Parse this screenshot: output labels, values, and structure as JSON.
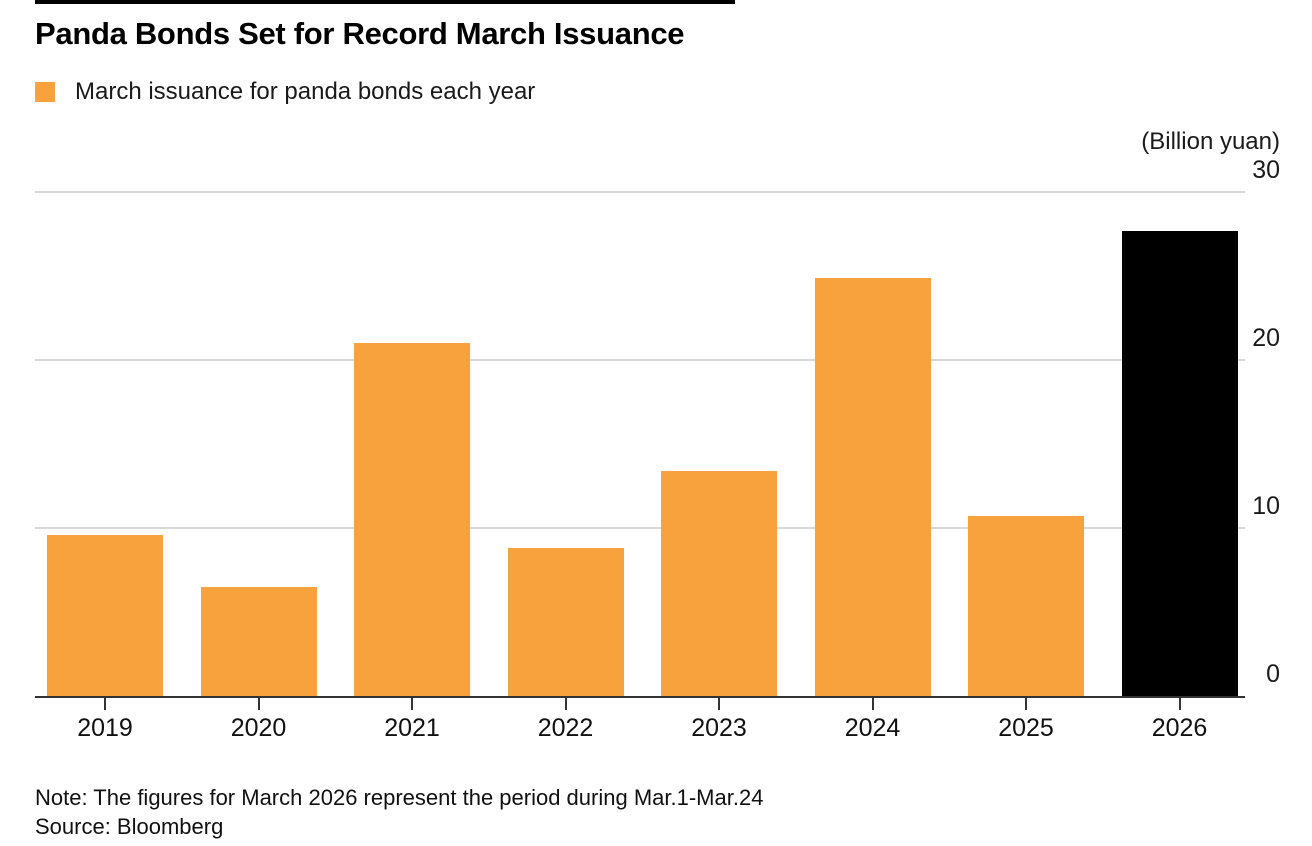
{
  "page": {
    "title": "Panda Bonds Set for Record March Issuance",
    "note": "Note: The figures for March 2026 represent the period during Mar.1-Mar.24",
    "source": "Source: Bloomberg"
  },
  "legend": {
    "label": "March issuance for panda bonds each year"
  },
  "colors": {
    "bar_orange": "#F7A23C",
    "bar_highlight": "#000000",
    "gridline": "#D9D9D9",
    "axis": "#333333",
    "text": "#111111"
  },
  "chart_data": {
    "type": "bar",
    "title": "Panda Bonds Set for Record March Issuance",
    "legend_entries": [
      "March issuance for panda bonds each year"
    ],
    "legend_position": "top-left",
    "unit_label": "(Billion yuan)",
    "categories": [
      "2019",
      "2020",
      "2021",
      "2022",
      "2023",
      "2024",
      "2025",
      "2026"
    ],
    "values": [
      9.6,
      6.5,
      21.0,
      8.8,
      13.4,
      24.9,
      10.7,
      27.7
    ],
    "bar_colors": [
      "orange",
      "orange",
      "orange",
      "orange",
      "orange",
      "orange",
      "orange",
      "highlight"
    ],
    "highlighted_category": "2026",
    "xlabel": "",
    "ylabel": "(Billion yuan)",
    "y_axis_side": "right",
    "y_ticks": [
      0,
      10,
      20,
      30
    ],
    "ylim": [
      0,
      30
    ],
    "grid": true,
    "note": "Note: The figures for March 2026 represent the period during Mar.1-Mar.24",
    "source": "Source: Bloomberg"
  }
}
